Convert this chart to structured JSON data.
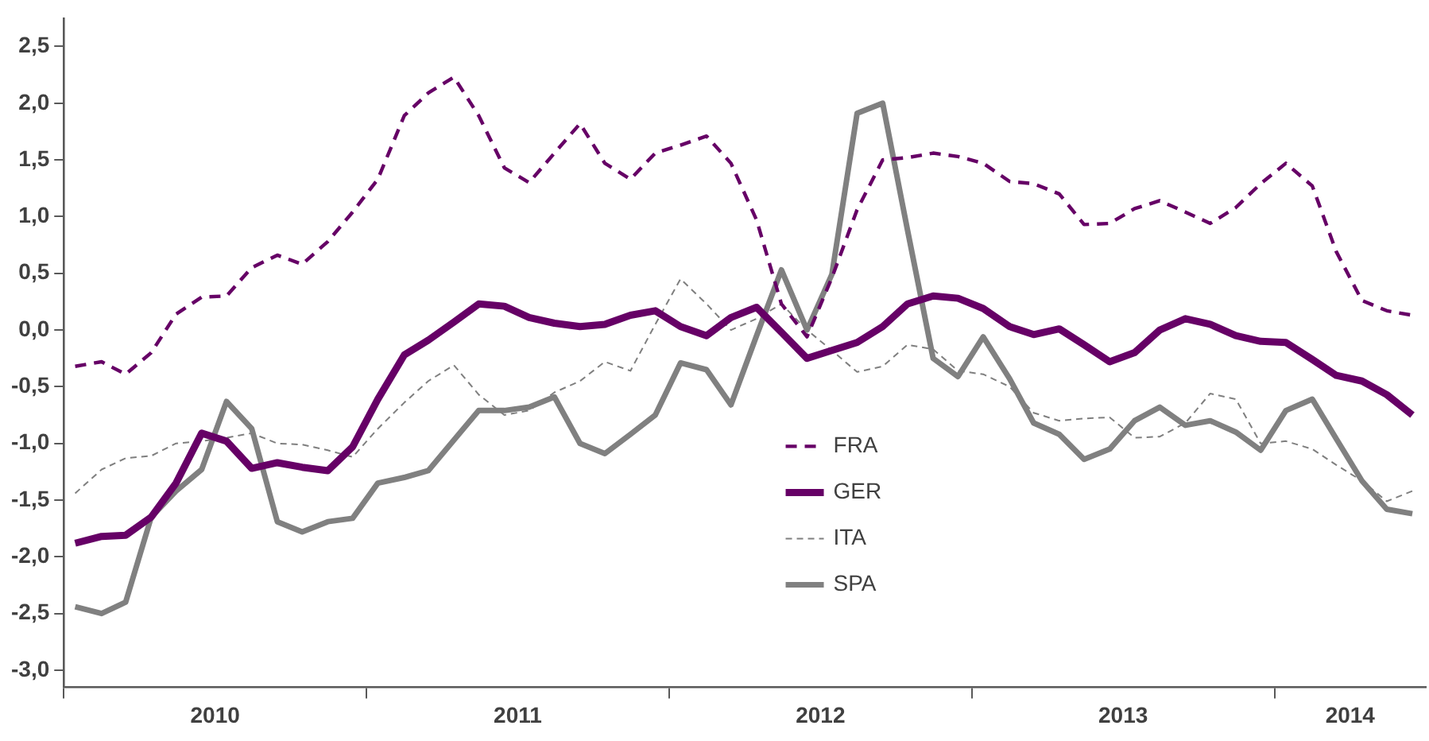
{
  "chart_data": {
    "type": "line",
    "x": [
      "2010-01-15",
      "2010-02-15",
      "2010-03-15",
      "2010-04-15",
      "2010-05-15",
      "2010-06-15",
      "2010-07-15",
      "2010-08-15",
      "2010-09-15",
      "2010-10-15",
      "2010-11-15",
      "2010-12-15",
      "2011-01-15",
      "2011-02-15",
      "2011-03-15",
      "2011-04-15",
      "2011-05-15",
      "2011-06-15",
      "2011-07-15",
      "2011-08-15",
      "2011-09-15",
      "2011-10-15",
      "2011-11-15",
      "2011-12-15",
      "2012-01-15",
      "2012-02-15",
      "2012-03-15",
      "2012-04-15",
      "2012-05-15",
      "2012-06-15",
      "2012-07-15",
      "2012-08-15",
      "2012-09-15",
      "2012-10-15",
      "2012-11-15",
      "2012-12-15",
      "2013-01-15",
      "2013-02-15",
      "2013-03-15",
      "2013-04-15",
      "2013-05-15",
      "2013-06-15",
      "2013-07-15",
      "2013-08-15",
      "2013-09-15",
      "2013-10-15",
      "2013-11-15",
      "2013-12-15",
      "2014-01-15",
      "2014-02-15",
      "2014-03-15",
      "2014-04-15",
      "2014-05-15",
      "2014-06-15"
    ],
    "series": [
      {
        "name": "FRA",
        "color": "#660066",
        "line_style": "dashed",
        "values": [
          -0.32,
          -0.28,
          -0.39,
          -0.2,
          0.14,
          0.29,
          0.3,
          0.55,
          0.66,
          0.58,
          0.78,
          1.04,
          1.33,
          1.89,
          2.09,
          2.23,
          1.89,
          1.43,
          1.3,
          1.56,
          1.82,
          1.47,
          1.33,
          1.56,
          1.63,
          1.71,
          1.47,
          0.97,
          0.23,
          -0.06,
          0.46,
          1.06,
          1.5,
          1.52,
          1.56,
          1.53,
          1.47,
          1.31,
          1.29,
          1.2,
          0.93,
          0.94,
          1.07,
          1.14,
          1.04,
          0.94,
          1.08,
          1.29,
          1.47,
          1.27,
          0.69,
          0.26,
          0.17,
          0.13
        ]
      },
      {
        "name": "GER",
        "color": "#660066",
        "line_style": "solid",
        "values": [
          -1.88,
          -1.82,
          -1.81,
          -1.65,
          -1.35,
          -0.91,
          -0.98,
          -1.22,
          -1.17,
          -1.21,
          -1.24,
          -1.03,
          -0.61,
          -0.22,
          -0.09,
          0.07,
          0.23,
          0.21,
          0.11,
          0.06,
          0.03,
          0.05,
          0.13,
          0.17,
          0.03,
          -0.05,
          0.11,
          0.2,
          -0.02,
          -0.25,
          -0.18,
          -0.11,
          0.03,
          0.23,
          0.3,
          0.28,
          0.19,
          0.03,
          -0.04,
          0.01,
          -0.13,
          -0.28,
          -0.2,
          0.0,
          0.1,
          0.05,
          -0.05,
          -0.1,
          -0.11,
          -0.26,
          -0.4,
          -0.45,
          -0.57,
          -0.75
        ]
      },
      {
        "name": "ITA",
        "color": "#7f7f7f",
        "line_style": "dashed",
        "values": [
          -1.44,
          -1.23,
          -1.13,
          -1.11,
          -1.0,
          -0.98,
          -0.95,
          -0.91,
          -1.0,
          -1.01,
          -1.06,
          -1.12,
          -0.87,
          -0.64,
          -0.45,
          -0.31,
          -0.57,
          -0.75,
          -0.71,
          -0.55,
          -0.45,
          -0.28,
          -0.36,
          0.05,
          0.45,
          0.23,
          0.0,
          0.1,
          0.23,
          0.0,
          -0.18,
          -0.37,
          -0.32,
          -0.13,
          -0.17,
          -0.36,
          -0.39,
          -0.5,
          -0.73,
          -0.8,
          -0.78,
          -0.77,
          -0.95,
          -0.94,
          -0.82,
          -0.56,
          -0.61,
          -1.0,
          -0.98,
          -1.05,
          -1.19,
          -1.33,
          -1.51,
          -1.42
        ]
      },
      {
        "name": "SPA",
        "color": "#808080",
        "line_style": "solid",
        "values": [
          -2.44,
          -2.5,
          -2.4,
          -1.65,
          -1.42,
          -1.23,
          -0.63,
          -0.87,
          -1.69,
          -1.78,
          -1.69,
          -1.66,
          -1.35,
          -1.3,
          -1.24,
          -0.97,
          -0.71,
          -0.71,
          -0.68,
          -0.59,
          -1.0,
          -1.09,
          -0.92,
          -0.75,
          -0.29,
          -0.35,
          -0.66,
          -0.05,
          0.53,
          0.0,
          0.49,
          1.91,
          2.0,
          0.88,
          -0.25,
          -0.41,
          -0.06,
          -0.43,
          -0.82,
          -0.92,
          -1.14,
          -1.05,
          -0.8,
          -0.68,
          -0.84,
          -0.8,
          -0.9,
          -1.06,
          -0.71,
          -0.61,
          -0.96,
          -1.33,
          -1.58,
          -1.62
        ]
      }
    ],
    "xlim": [
      "2010-01-01",
      "2014-07-01"
    ],
    "xticks": [
      {
        "value": "2010-01-01",
        "label": null
      },
      {
        "value": "2010-07-01",
        "label": "2010"
      },
      {
        "value": "2011-01-01",
        "label": null
      },
      {
        "value": "2011-07-01",
        "label": "2011"
      },
      {
        "value": "2012-01-01",
        "label": null
      },
      {
        "value": "2012-07-01",
        "label": "2012"
      },
      {
        "value": "2013-01-01",
        "label": null
      },
      {
        "value": "2013-07-01",
        "label": "2013"
      },
      {
        "value": "2014-01-01",
        "label": null
      },
      {
        "value": "2014-04-01",
        "label": "2014"
      }
    ],
    "ylim": [
      -3.15,
      2.75
    ],
    "yticks": [
      {
        "value": 2.5,
        "label": "2,5"
      },
      {
        "value": 2,
        "label": "2,0"
      },
      {
        "value": 1.5,
        "label": "1,5"
      },
      {
        "value": 1,
        "label": "1,0"
      },
      {
        "value": 0.5,
        "label": "0,5"
      },
      {
        "value": 0,
        "label": "0,0"
      },
      {
        "value": -0.5,
        "label": "-0,5"
      },
      {
        "value": -1,
        "label": "-1,0"
      },
      {
        "value": -1.5,
        "label": "-1,5"
      },
      {
        "value": -2,
        "label": "-2,0"
      },
      {
        "value": -2.5,
        "label": "-2,5"
      },
      {
        "value": -3,
        "label": "-3,0"
      }
    ],
    "grid": false,
    "legend": "bottom",
    "marker": "none"
  }
}
